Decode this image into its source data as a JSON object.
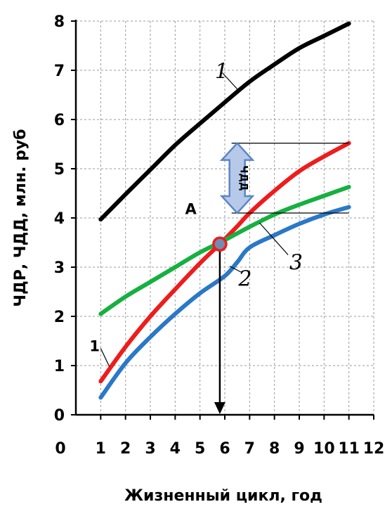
{
  "chart_data": {
    "type": "line",
    "ylabel": "ЧДР, ЧДД, млн. руб",
    "xlabel": "Жизненный цикл, год",
    "xlim": [
      0,
      12
    ],
    "ylim": [
      0,
      8
    ],
    "x_ticks": [
      "0",
      "1",
      "2",
      "3",
      "4",
      "5",
      "6",
      "7",
      "8",
      "9",
      "10",
      "11",
      "12"
    ],
    "y_ticks": [
      "0",
      "1",
      "2",
      "3",
      "4",
      "5",
      "6",
      "7",
      "8"
    ],
    "grid": true,
    "series": [
      {
        "key": "black",
        "color": "#000000",
        "x": [
          1,
          2,
          3,
          4,
          5,
          6,
          7,
          8,
          9,
          10,
          11
        ],
        "y": [
          3.97,
          4.48,
          4.98,
          5.48,
          5.92,
          6.35,
          6.77,
          7.12,
          7.45,
          7.7,
          7.95
        ]
      },
      {
        "key": "red",
        "color": "#ee1c1c",
        "x": [
          1,
          2,
          3,
          4,
          5,
          5.8,
          6.5,
          7,
          8,
          9,
          10,
          11
        ],
        "y": [
          0.68,
          1.38,
          2.0,
          2.55,
          3.08,
          3.47,
          3.83,
          4.1,
          4.55,
          4.95,
          5.25,
          5.52
        ]
      },
      {
        "key": "green",
        "color": "#16b040",
        "x": [
          1,
          2,
          3,
          4,
          5,
          6,
          7,
          8,
          9,
          10,
          11
        ],
        "y": [
          2.05,
          2.4,
          2.7,
          3.0,
          3.3,
          3.55,
          3.82,
          4.07,
          4.27,
          4.45,
          4.63
        ]
      },
      {
        "key": "blue",
        "color": "#2a78c8",
        "x": [
          1,
          2,
          3,
          4,
          5,
          6,
          6.5,
          7,
          8,
          9,
          10,
          11
        ],
        "y": [
          0.35,
          1.05,
          1.58,
          2.05,
          2.47,
          2.82,
          3.1,
          3.4,
          3.65,
          3.88,
          4.07,
          4.22
        ]
      }
    ],
    "intersection_point": {
      "x": 5.8,
      "y": 3.47
    },
    "annotations": {
      "label_1_top": "1",
      "label_1_left": "1",
      "label_2": "2",
      "label_3": "3",
      "label_A": "A",
      "arrow_label": "ЧДД"
    },
    "ndd_arrow": {
      "x": 6.5,
      "y_top": 5.52,
      "y_bottom": 4.1
    }
  }
}
